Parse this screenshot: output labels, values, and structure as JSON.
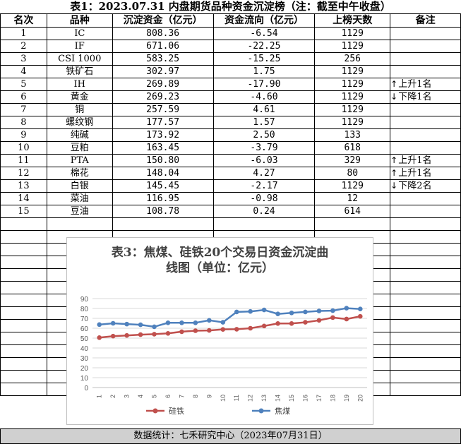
{
  "title": "表1：2023.07.31  内盘期货品种资金沉淀榜（注：截至中午收盘）",
  "headers": [
    "名次",
    "品种",
    "沉淀资金（亿元）",
    "资金流向（亿元）",
    "上榜天数",
    "备注"
  ],
  "rows": [
    {
      "rank": "1",
      "name": "IC",
      "capital": "808.36",
      "flow": "-6.54",
      "days": "1129",
      "note_arrow": "",
      "note": ""
    },
    {
      "rank": "2",
      "name": "IF",
      "capital": "671.06",
      "flow": "-22.25",
      "days": "1129",
      "note_arrow": "",
      "note": ""
    },
    {
      "rank": "3",
      "name": "CSI 1000",
      "capital": "583.25",
      "flow": "-15.25",
      "days": "256",
      "note_arrow": "",
      "note": ""
    },
    {
      "rank": "4",
      "name": "铁矿石",
      "capital": "302.97",
      "flow": "1.75",
      "days": "1129",
      "note_arrow": "",
      "note": ""
    },
    {
      "rank": "5",
      "name": "IH",
      "capital": "269.89",
      "flow": "-17.90",
      "days": "1129",
      "note_arrow": "↑",
      "note": "上升1名"
    },
    {
      "rank": "6",
      "name": "黄金",
      "capital": "269.23",
      "flow": "-4.60",
      "days": "1129",
      "note_arrow": "↓",
      "note": "下降1名"
    },
    {
      "rank": "7",
      "name": "铜",
      "capital": "257.59",
      "flow": "4.61",
      "days": "1129",
      "note_arrow": "",
      "note": ""
    },
    {
      "rank": "8",
      "name": "螺纹钢",
      "capital": "177.57",
      "flow": "1.57",
      "days": "1129",
      "note_arrow": "",
      "note": ""
    },
    {
      "rank": "9",
      "name": "纯碱",
      "capital": "173.92",
      "flow": "2.50",
      "days": "133",
      "note_arrow": "",
      "note": ""
    },
    {
      "rank": "10",
      "name": "豆粕",
      "capital": "163.45",
      "flow": "-3.79",
      "days": "618",
      "note_arrow": "",
      "note": ""
    },
    {
      "rank": "11",
      "name": "PTA",
      "capital": "150.80",
      "flow": "-6.03",
      "days": "329",
      "note_arrow": "↑",
      "note": "上升1名"
    },
    {
      "rank": "12",
      "name": "棉花",
      "capital": "148.04",
      "flow": "4.27",
      "days": "80",
      "note_arrow": "↑",
      "note": "上升1名"
    },
    {
      "rank": "13",
      "name": "白银",
      "capital": "145.45",
      "flow": "-2.17",
      "days": "1129",
      "note_arrow": "↓",
      "note": "下降2名"
    },
    {
      "rank": "14",
      "name": "菜油",
      "capital": "116.95",
      "flow": "-0.98",
      "days": "12",
      "note_arrow": "",
      "note": ""
    },
    {
      "rank": "15",
      "name": "豆油",
      "capital": "108.78",
      "flow": "0.24",
      "days": "614",
      "note_arrow": "",
      "note": ""
    }
  ],
  "footer": "数据统计：七禾研究中心（2023年07月31日）",
  "chart_data": {
    "type": "line",
    "title": "表3：焦煤、硅铁20个交易日资金沉淀曲线图（单位：亿元）",
    "categories": [
      "1",
      "2",
      "3",
      "4",
      "5",
      "6",
      "7",
      "8",
      "9",
      "10",
      "11",
      "12",
      "13",
      "14",
      "15",
      "16",
      "17",
      "18",
      "19",
      "20"
    ],
    "ylim": [
      0,
      90
    ],
    "yticks": [
      0,
      10,
      20,
      30,
      40,
      50,
      60,
      70,
      80,
      90
    ],
    "grid": true,
    "legend_position": "bottom",
    "series": [
      {
        "name": "硅铁",
        "color": "#c0504d",
        "values": [
          50.5,
          52,
          52.7,
          53.5,
          54,
          54.8,
          56.5,
          57.5,
          57.8,
          58.8,
          59,
          60,
          62.3,
          64.8,
          64.8,
          66,
          68,
          70.8,
          69.3,
          72
        ]
      },
      {
        "name": "焦煤",
        "color": "#4f81bd",
        "values": [
          63.7,
          65,
          64.2,
          63.5,
          61.5,
          65.5,
          65.5,
          65.5,
          68,
          66,
          76.5,
          77,
          78.5,
          74.5,
          75.5,
          76.5,
          77.5,
          77.8,
          80.3,
          79.5
        ]
      }
    ]
  }
}
